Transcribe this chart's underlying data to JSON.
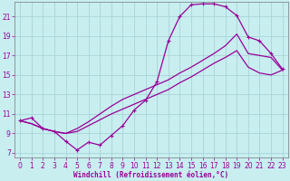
{
  "xlabel": "Windchill (Refroidissement éolien,°C)",
  "bg_color": "#c8eef0",
  "grid_color": "#a8d4d8",
  "line_color": "#990099",
  "xlim_min": -0.5,
  "xlim_max": 23.5,
  "ylim_min": 6.5,
  "ylim_max": 22.5,
  "xticks": [
    0,
    1,
    2,
    3,
    4,
    5,
    6,
    7,
    8,
    9,
    10,
    11,
    12,
    13,
    14,
    15,
    16,
    17,
    18,
    19,
    20,
    21,
    22,
    23
  ],
  "yticks": [
    7,
    9,
    11,
    13,
    15,
    17,
    19,
    21
  ],
  "curve1_x": [
    0,
    1,
    2,
    3,
    4,
    5,
    6,
    7,
    8,
    9,
    10,
    11,
    12,
    13,
    14,
    15,
    16,
    17,
    18,
    19,
    20,
    21,
    22,
    23
  ],
  "curve1_y": [
    10.3,
    10.6,
    9.5,
    9.2,
    8.2,
    7.3,
    8.1,
    7.8,
    8.8,
    9.8,
    11.4,
    12.4,
    14.3,
    18.5,
    21.0,
    22.2,
    22.3,
    22.3,
    22.0,
    21.1,
    18.9,
    18.5,
    17.2,
    15.6
  ],
  "curve2_x": [
    0,
    1,
    2,
    3,
    4,
    5,
    6,
    7,
    8,
    9,
    10,
    11,
    12,
    13,
    14,
    15,
    16,
    17,
    18,
    19,
    20,
    21,
    22,
    23
  ],
  "curve2_y": [
    10.3,
    10.0,
    9.5,
    9.2,
    9.0,
    9.5,
    10.2,
    11.0,
    11.8,
    12.5,
    13.0,
    13.5,
    14.0,
    14.5,
    15.2,
    15.8,
    16.5,
    17.2,
    18.0,
    19.2,
    17.2,
    17.0,
    16.8,
    15.5
  ],
  "curve3_x": [
    0,
    1,
    2,
    3,
    4,
    5,
    6,
    7,
    8,
    9,
    10,
    11,
    12,
    13,
    14,
    15,
    16,
    17,
    18,
    19,
    20,
    21,
    22,
    23
  ],
  "curve3_y": [
    10.3,
    10.0,
    9.5,
    9.2,
    9.0,
    9.2,
    9.8,
    10.4,
    11.0,
    11.5,
    12.0,
    12.5,
    13.0,
    13.5,
    14.2,
    14.8,
    15.5,
    16.2,
    16.8,
    17.5,
    15.8,
    15.2,
    15.0,
    15.5
  ],
  "tick_fontsize": 5.5,
  "xlabel_fontsize": 5.5,
  "lw": 0.9,
  "markersize": 3.0
}
